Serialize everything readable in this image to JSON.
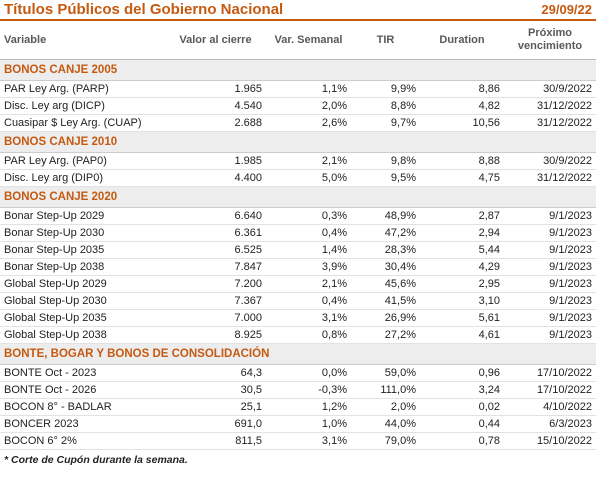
{
  "header": {
    "title": "Títulos Públicos del Gobierno Nacional",
    "date": "29/09/22"
  },
  "table": {
    "columns": [
      "Variable",
      "Valor al cierre",
      "Var. Semanal",
      "TIR",
      "Duration",
      "Próximo vencimiento"
    ],
    "sections": [
      {
        "title": "BONOS CANJE 2005",
        "rows": [
          [
            "PAR Ley Arg. (PARP)",
            "1.965",
            "1,1%",
            "9,9%",
            "8,86",
            "30/9/2022"
          ],
          [
            "Disc. Ley arg (DICP)",
            "4.540",
            "2,0%",
            "8,8%",
            "4,82",
            "31/12/2022"
          ],
          [
            "Cuasipar $ Ley Arg. (CUAP)",
            "2.688",
            "2,6%",
            "9,7%",
            "10,56",
            "31/12/2022"
          ]
        ]
      },
      {
        "title": "BONOS CANJE 2010",
        "rows": [
          [
            "PAR Ley Arg. (PAP0)",
            "1.985",
            "2,1%",
            "9,8%",
            "8,88",
            "30/9/2022"
          ],
          [
            "Disc. Ley arg (DIP0)",
            "4.400",
            "5,0%",
            "9,5%",
            "4,75",
            "31/12/2022"
          ]
        ]
      },
      {
        "title": "BONOS CANJE 2020",
        "rows": [
          [
            "Bonar Step-Up 2029",
            "6.640",
            "0,3%",
            "48,9%",
            "2,87",
            "9/1/2023"
          ],
          [
            "Bonar Step-Up 2030",
            "6.361",
            "0,4%",
            "47,2%",
            "2,94",
            "9/1/2023"
          ],
          [
            "Bonar Step-Up 2035",
            "6.525",
            "1,4%",
            "28,3%",
            "5,44",
            "9/1/2023"
          ],
          [
            "Bonar Step-Up 2038",
            "7.847",
            "3,9%",
            "30,4%",
            "4,29",
            "9/1/2023"
          ],
          [
            "Global Step-Up 2029",
            "7.200",
            "2,1%",
            "45,6%",
            "2,95",
            "9/1/2023"
          ],
          [
            "Global Step-Up 2030",
            "7.367",
            "0,4%",
            "41,5%",
            "3,10",
            "9/1/2023"
          ],
          [
            "Global Step-Up 2035",
            "7.000",
            "3,1%",
            "26,9%",
            "5,61",
            "9/1/2023"
          ],
          [
            "Global Step-Up 2038",
            "8.925",
            "0,8%",
            "27,2%",
            "4,61",
            "9/1/2023"
          ]
        ]
      },
      {
        "title": "BONTE, BOGAR Y BONOS DE CONSOLIDACIÓN",
        "rows": [
          [
            "BONTE Oct - 2023",
            "64,3",
            "0,0%",
            "59,0%",
            "0,96",
            "17/10/2022"
          ],
          [
            "BONTE Oct - 2026",
            "30,5",
            "-0,3%",
            "111,0%",
            "3,24",
            "17/10/2022"
          ],
          [
            "BOCON 8° - BADLAR",
            "25,1",
            "1,2%",
            "2,0%",
            "0,02",
            "4/10/2022"
          ],
          [
            "BONCER 2023",
            "691,0",
            "1,0%",
            "44,0%",
            "0,44",
            "6/3/2023"
          ],
          [
            "BOCON 6° 2%",
            "811,5",
            "3,1%",
            "79,0%",
            "0,78",
            "15/10/2022"
          ]
        ]
      }
    ]
  },
  "footnote": "* Corte de Cupón durante la semana."
}
